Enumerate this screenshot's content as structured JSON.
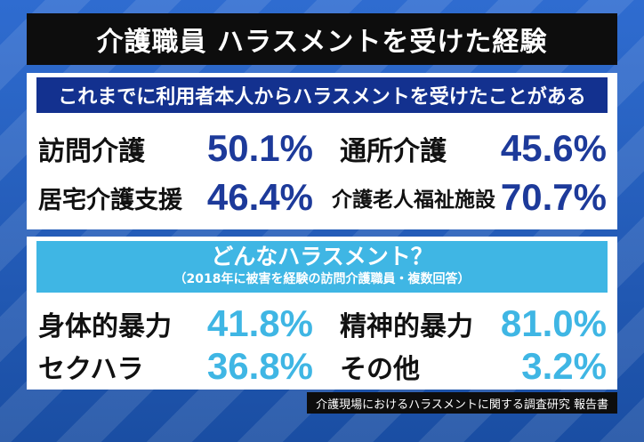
{
  "title": "介護職員 ハラスメントを受けた経験",
  "section1": {
    "heading": "これまでに利用者本人からハラスメントを受けたことがある",
    "items": [
      {
        "label": "訪問介護",
        "value": "50.1%"
      },
      {
        "label": "通所介護",
        "value": "45.6%"
      },
      {
        "label": "居宅介護支援",
        "value": "46.4%"
      },
      {
        "label": "介護老人福祉施設",
        "value": "70.7%"
      }
    ]
  },
  "section2": {
    "heading": "どんなハラスメント？",
    "note": "（2018年に被害を経験の訪問介護職員・複数回答）",
    "items": [
      {
        "label": "身体的暴力",
        "value": "41.8%"
      },
      {
        "label": "精神的暴力",
        "value": "81.0%"
      },
      {
        "label": "セクハラ",
        "value": "36.8%"
      },
      {
        "label": "その他",
        "value": "3.2%"
      }
    ]
  },
  "source": "介護現場におけるハラスメントに関する調査研究 報告書",
  "colors": {
    "title_bg": "#0d0d0d",
    "navy": "#13318f",
    "value_navy": "#1d3a9a",
    "cyan": "#3fb6e4",
    "background": "#1a4ea3"
  }
}
